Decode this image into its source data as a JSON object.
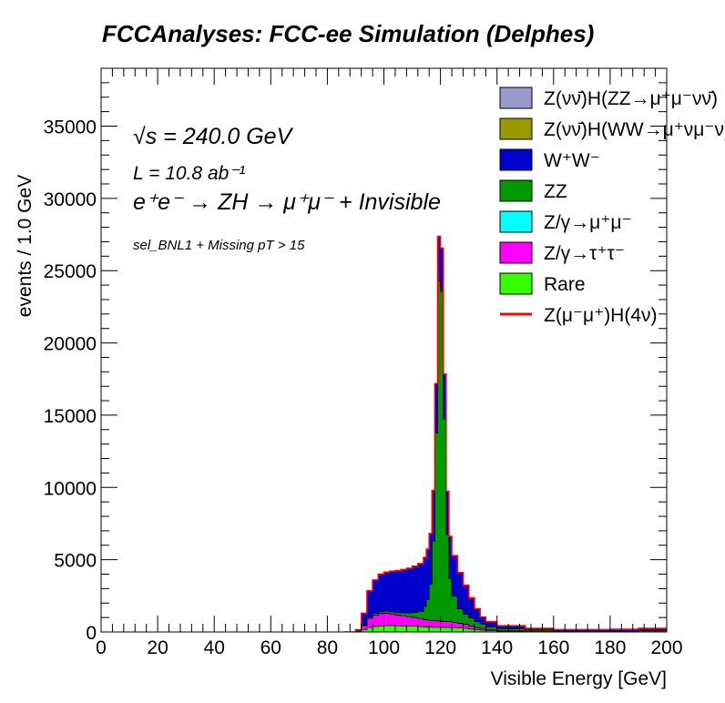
{
  "chart_data": {
    "type": "area",
    "title": "FCCAnalyses: FCC-ee Simulation (Delphes)",
    "xlabel": "Visible Energy [GeV]",
    "ylabel": "events / 1.0 GeV",
    "xlim": [
      0,
      200
    ],
    "ylim": [
      0,
      39000
    ],
    "x_ticks": [
      "0",
      "20",
      "40",
      "60",
      "80",
      "100",
      "120",
      "140",
      "160",
      "180",
      "200"
    ],
    "y_ticks": [
      "0",
      "5000",
      "10000",
      "15000",
      "20000",
      "25000",
      "30000",
      "35000"
    ],
    "annotations": {
      "sqrt_s": "√s = 240.0 GeV",
      "lumi": "L = 10.8 ab⁻¹",
      "process": "e⁺e⁻ → ZH → μ⁺μ⁻ + Invisible",
      "selection": "sel_BNL1 + Missing pT > 15"
    },
    "legend_position": "top-right",
    "bin_width": 1.0,
    "x": [
      86,
      88,
      90,
      92,
      94,
      96,
      98,
      100,
      102,
      104,
      106,
      108,
      110,
      112,
      114,
      115,
      116,
      117,
      118,
      119,
      120,
      121,
      122,
      123,
      124,
      126,
      128,
      130,
      132,
      134,
      136,
      140,
      150,
      160,
      170,
      180,
      190,
      200
    ],
    "series": [
      {
        "name": "Rare",
        "color": "#33ff00",
        "values": [
          0,
          0,
          0,
          150,
          300,
          380,
          420,
          450,
          450,
          430,
          420,
          410,
          400,
          380,
          360,
          350,
          340,
          330,
          330,
          330,
          330,
          320,
          320,
          310,
          300,
          280,
          250,
          200,
          150,
          120,
          80,
          40,
          20,
          10,
          10,
          10,
          10,
          10
        ]
      },
      {
        "name": "Z/γ→τ⁺τ⁻",
        "color": "#ff00ff",
        "values": [
          0,
          0,
          50,
          300,
          650,
          800,
          850,
          850,
          800,
          750,
          700,
          650,
          600,
          550,
          500,
          480,
          470,
          460,
          450,
          440,
          430,
          420,
          410,
          400,
          380,
          330,
          280,
          220,
          160,
          120,
          80,
          40,
          15,
          5,
          5,
          5,
          5,
          5
        ]
      },
      {
        "name": "Z/γ→μ⁺μ⁻",
        "color": "#00ffff",
        "values": [
          0,
          0,
          0,
          0,
          0,
          0,
          0,
          0,
          0,
          0,
          0,
          0,
          0,
          0,
          0,
          0,
          0,
          0,
          0,
          0,
          0,
          0,
          0,
          0,
          0,
          0,
          0,
          0,
          0,
          0,
          0,
          0,
          0,
          0,
          0,
          0,
          0,
          0
        ]
      },
      {
        "name": "ZZ",
        "color": "#009900",
        "values": [
          0,
          0,
          0,
          50,
          100,
          120,
          130,
          140,
          150,
          170,
          200,
          250,
          350,
          500,
          900,
          1400,
          2500,
          5500,
          13000,
          23500,
          22800,
          14000,
          6000,
          3000,
          1800,
          1000,
          700,
          550,
          400,
          300,
          200,
          150,
          100,
          50,
          50,
          50,
          80,
          100
        ]
      },
      {
        "name": "W⁺W⁻",
        "color": "#0000cc",
        "values": [
          0,
          0,
          100,
          800,
          1800,
          2300,
          2600,
          2700,
          2800,
          2900,
          3000,
          3100,
          3200,
          3300,
          3400,
          3500,
          3500,
          3500,
          3400,
          3100,
          3000,
          3100,
          3000,
          2900,
          2800,
          2500,
          2000,
          1400,
          900,
          500,
          350,
          200,
          120,
          100,
          100,
          120,
          150,
          200
        ]
      },
      {
        "name": "Z(νν̄)H(WW→μ⁺νμ⁻ν)",
        "color": "#999900",
        "values": [
          0,
          0,
          0,
          0,
          0,
          0,
          0,
          0,
          0,
          0,
          0,
          0,
          0,
          0,
          0,
          0,
          0,
          0,
          0,
          0,
          0,
          0,
          0,
          0,
          0,
          0,
          0,
          0,
          0,
          0,
          0,
          0,
          0,
          0,
          0,
          0,
          0,
          0
        ]
      },
      {
        "name": "Z(νν̄)H(ZZ→μ⁺μ⁻νν̄)",
        "color": "#9999cc",
        "values": [
          0,
          0,
          0,
          0,
          0,
          0,
          0,
          0,
          0,
          0,
          0,
          0,
          0,
          0,
          0,
          0,
          0,
          0,
          0,
          0,
          0,
          0,
          0,
          0,
          0,
          0,
          0,
          0,
          0,
          0,
          0,
          0,
          0,
          0,
          0,
          0,
          0,
          0
        ]
      }
    ],
    "signal": {
      "name": "Z(μ⁻μ⁺)H(4ν)",
      "color": "#ff0000",
      "values": [
        0,
        0,
        0,
        0,
        0,
        0,
        0,
        0,
        0,
        0,
        0,
        0,
        0,
        0,
        0,
        0,
        0,
        0,
        0,
        0,
        0,
        0,
        0,
        0,
        0,
        0,
        0,
        0,
        0,
        0,
        0,
        0,
        0,
        0,
        0,
        0,
        0,
        0
      ]
    },
    "legend": [
      {
        "label": "Z(νν̄)H(ZZ→μ⁺μ⁻νν̄)",
        "color": "#9999cc",
        "style": "fill"
      },
      {
        "label": "Z(νν̄)H(WW→μ⁺νμ⁻ν)",
        "color": "#999900",
        "style": "fill"
      },
      {
        "label": "W⁺W⁻",
        "color": "#0000cc",
        "style": "fill"
      },
      {
        "label": "ZZ",
        "color": "#009900",
        "style": "fill"
      },
      {
        "label": "Z/γ→μ⁺μ⁻",
        "color": "#00ffff",
        "style": "fill"
      },
      {
        "label": "Z/γ→τ⁺τ⁻",
        "color": "#ff00ff",
        "style": "fill"
      },
      {
        "label": "Rare",
        "color": "#33ff00",
        "style": "fill"
      },
      {
        "label": "Z(μ⁻μ⁺)H(4ν)",
        "color": "#ff0000",
        "style": "line"
      }
    ]
  }
}
